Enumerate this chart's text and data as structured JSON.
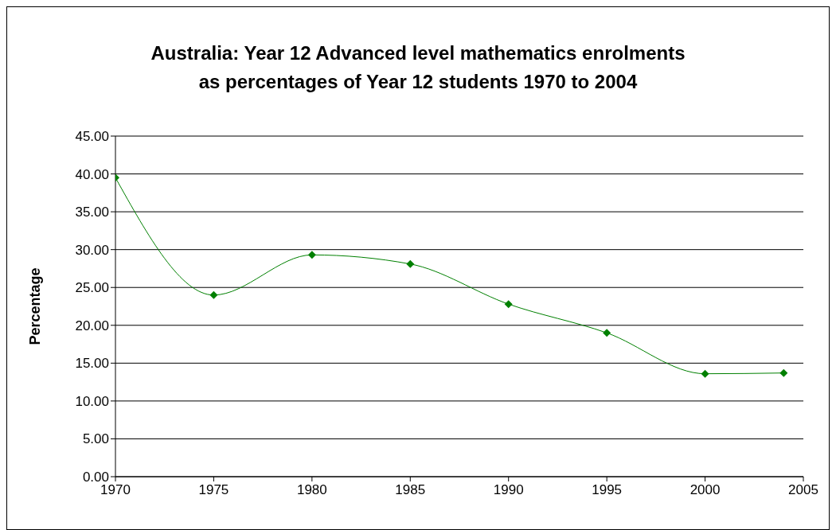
{
  "chart_data": {
    "type": "line",
    "title": "Australia: Year 12 Advanced level mathematics enrolments\nas percentages of Year 12 students 1970 to 2004",
    "ylabel": "Percentage",
    "x": [
      1970,
      1975,
      1980,
      1985,
      1990,
      1995,
      2000,
      2004
    ],
    "series": [
      {
        "color": "#008000",
        "values": [
          39.5,
          24.0,
          29.3,
          28.1,
          22.8,
          19.0,
          13.6,
          13.7
        ]
      }
    ],
    "xlim": [
      1970,
      2005
    ],
    "xticks": [
      1970,
      1975,
      1980,
      1985,
      1990,
      1995,
      2000,
      2005
    ],
    "ylim": [
      0,
      45
    ],
    "yticks": [
      {
        "value": 0,
        "label": "0.00"
      },
      {
        "value": 5,
        "label": "5.00"
      },
      {
        "value": 10,
        "label": "10.00"
      },
      {
        "value": 15,
        "label": "15.00"
      },
      {
        "value": 20,
        "label": "20.00"
      },
      {
        "value": 25,
        "label": "25.00"
      },
      {
        "value": 30,
        "label": "30.00"
      },
      {
        "value": 35,
        "label": "35.00"
      },
      {
        "value": 40,
        "label": "40.00"
      },
      {
        "value": 45,
        "label": "45.00"
      }
    ],
    "grid": "y",
    "legend": false,
    "marker": "diamond",
    "line_style": "solid"
  }
}
